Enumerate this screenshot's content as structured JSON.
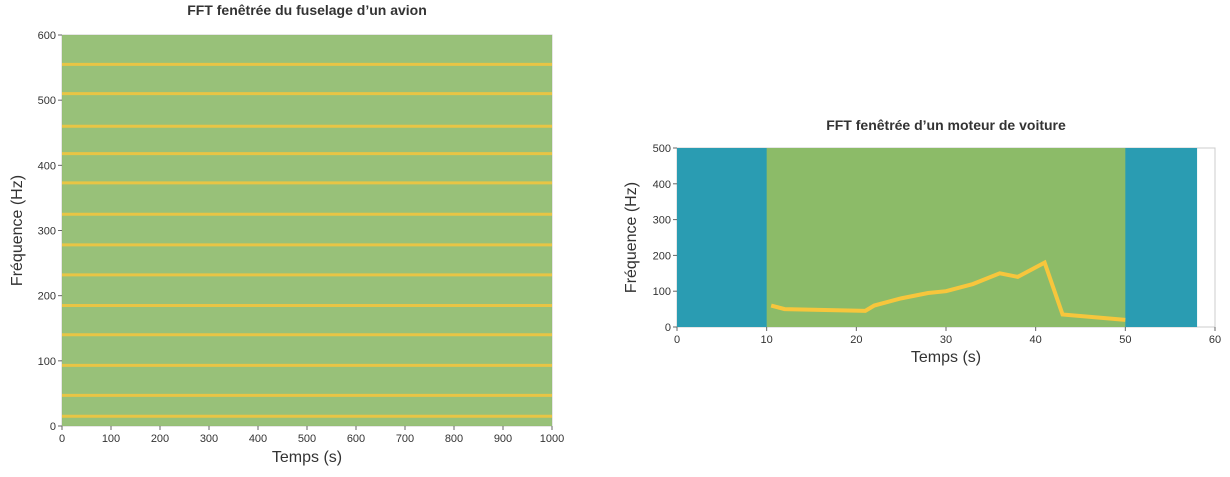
{
  "chart_data": [
    {
      "type": "spectrogram",
      "title": "FFT fenêtrée du fuselage d’un avion",
      "x_label": "Temps (s)",
      "y_label": "Fréquence (Hz)",
      "xlim": [
        0,
        1000
      ],
      "xticks": [
        0,
        100,
        200,
        300,
        400,
        500,
        600,
        700,
        800,
        900,
        1000
      ],
      "ylim": [
        0,
        600
      ],
      "yticks": [
        0,
        100,
        200,
        300,
        400,
        500,
        600
      ],
      "harmonics": [
        15,
        47,
        93,
        140,
        185,
        232,
        278,
        325,
        373,
        418,
        460,
        510,
        555
      ],
      "background_color": "#8dba6a",
      "color": "#f7c63c"
    },
    {
      "type": "spectrogram-track",
      "title": "FFT fenêtrée d’un moteur de voiture",
      "x_label": "Temps (s)",
      "y_label": "Fréquence (Hz)",
      "xlim": [
        0,
        60
      ],
      "xticks": [
        0,
        10,
        20,
        30,
        40,
        50,
        60
      ],
      "ylim": [
        0,
        500
      ],
      "yticks": [
        0,
        100,
        200,
        300,
        400,
        500
      ],
      "x": [
        10.5,
        12,
        21,
        22,
        25,
        28,
        30,
        33,
        36,
        38,
        41,
        43,
        50
      ],
      "values": [
        60,
        50,
        45,
        60,
        80,
        95,
        100,
        120,
        150,
        140,
        180,
        35,
        20
      ],
      "background_color": "#2a9cb2",
      "active_color": "#8cbb68",
      "color": "#f7c63c"
    }
  ]
}
